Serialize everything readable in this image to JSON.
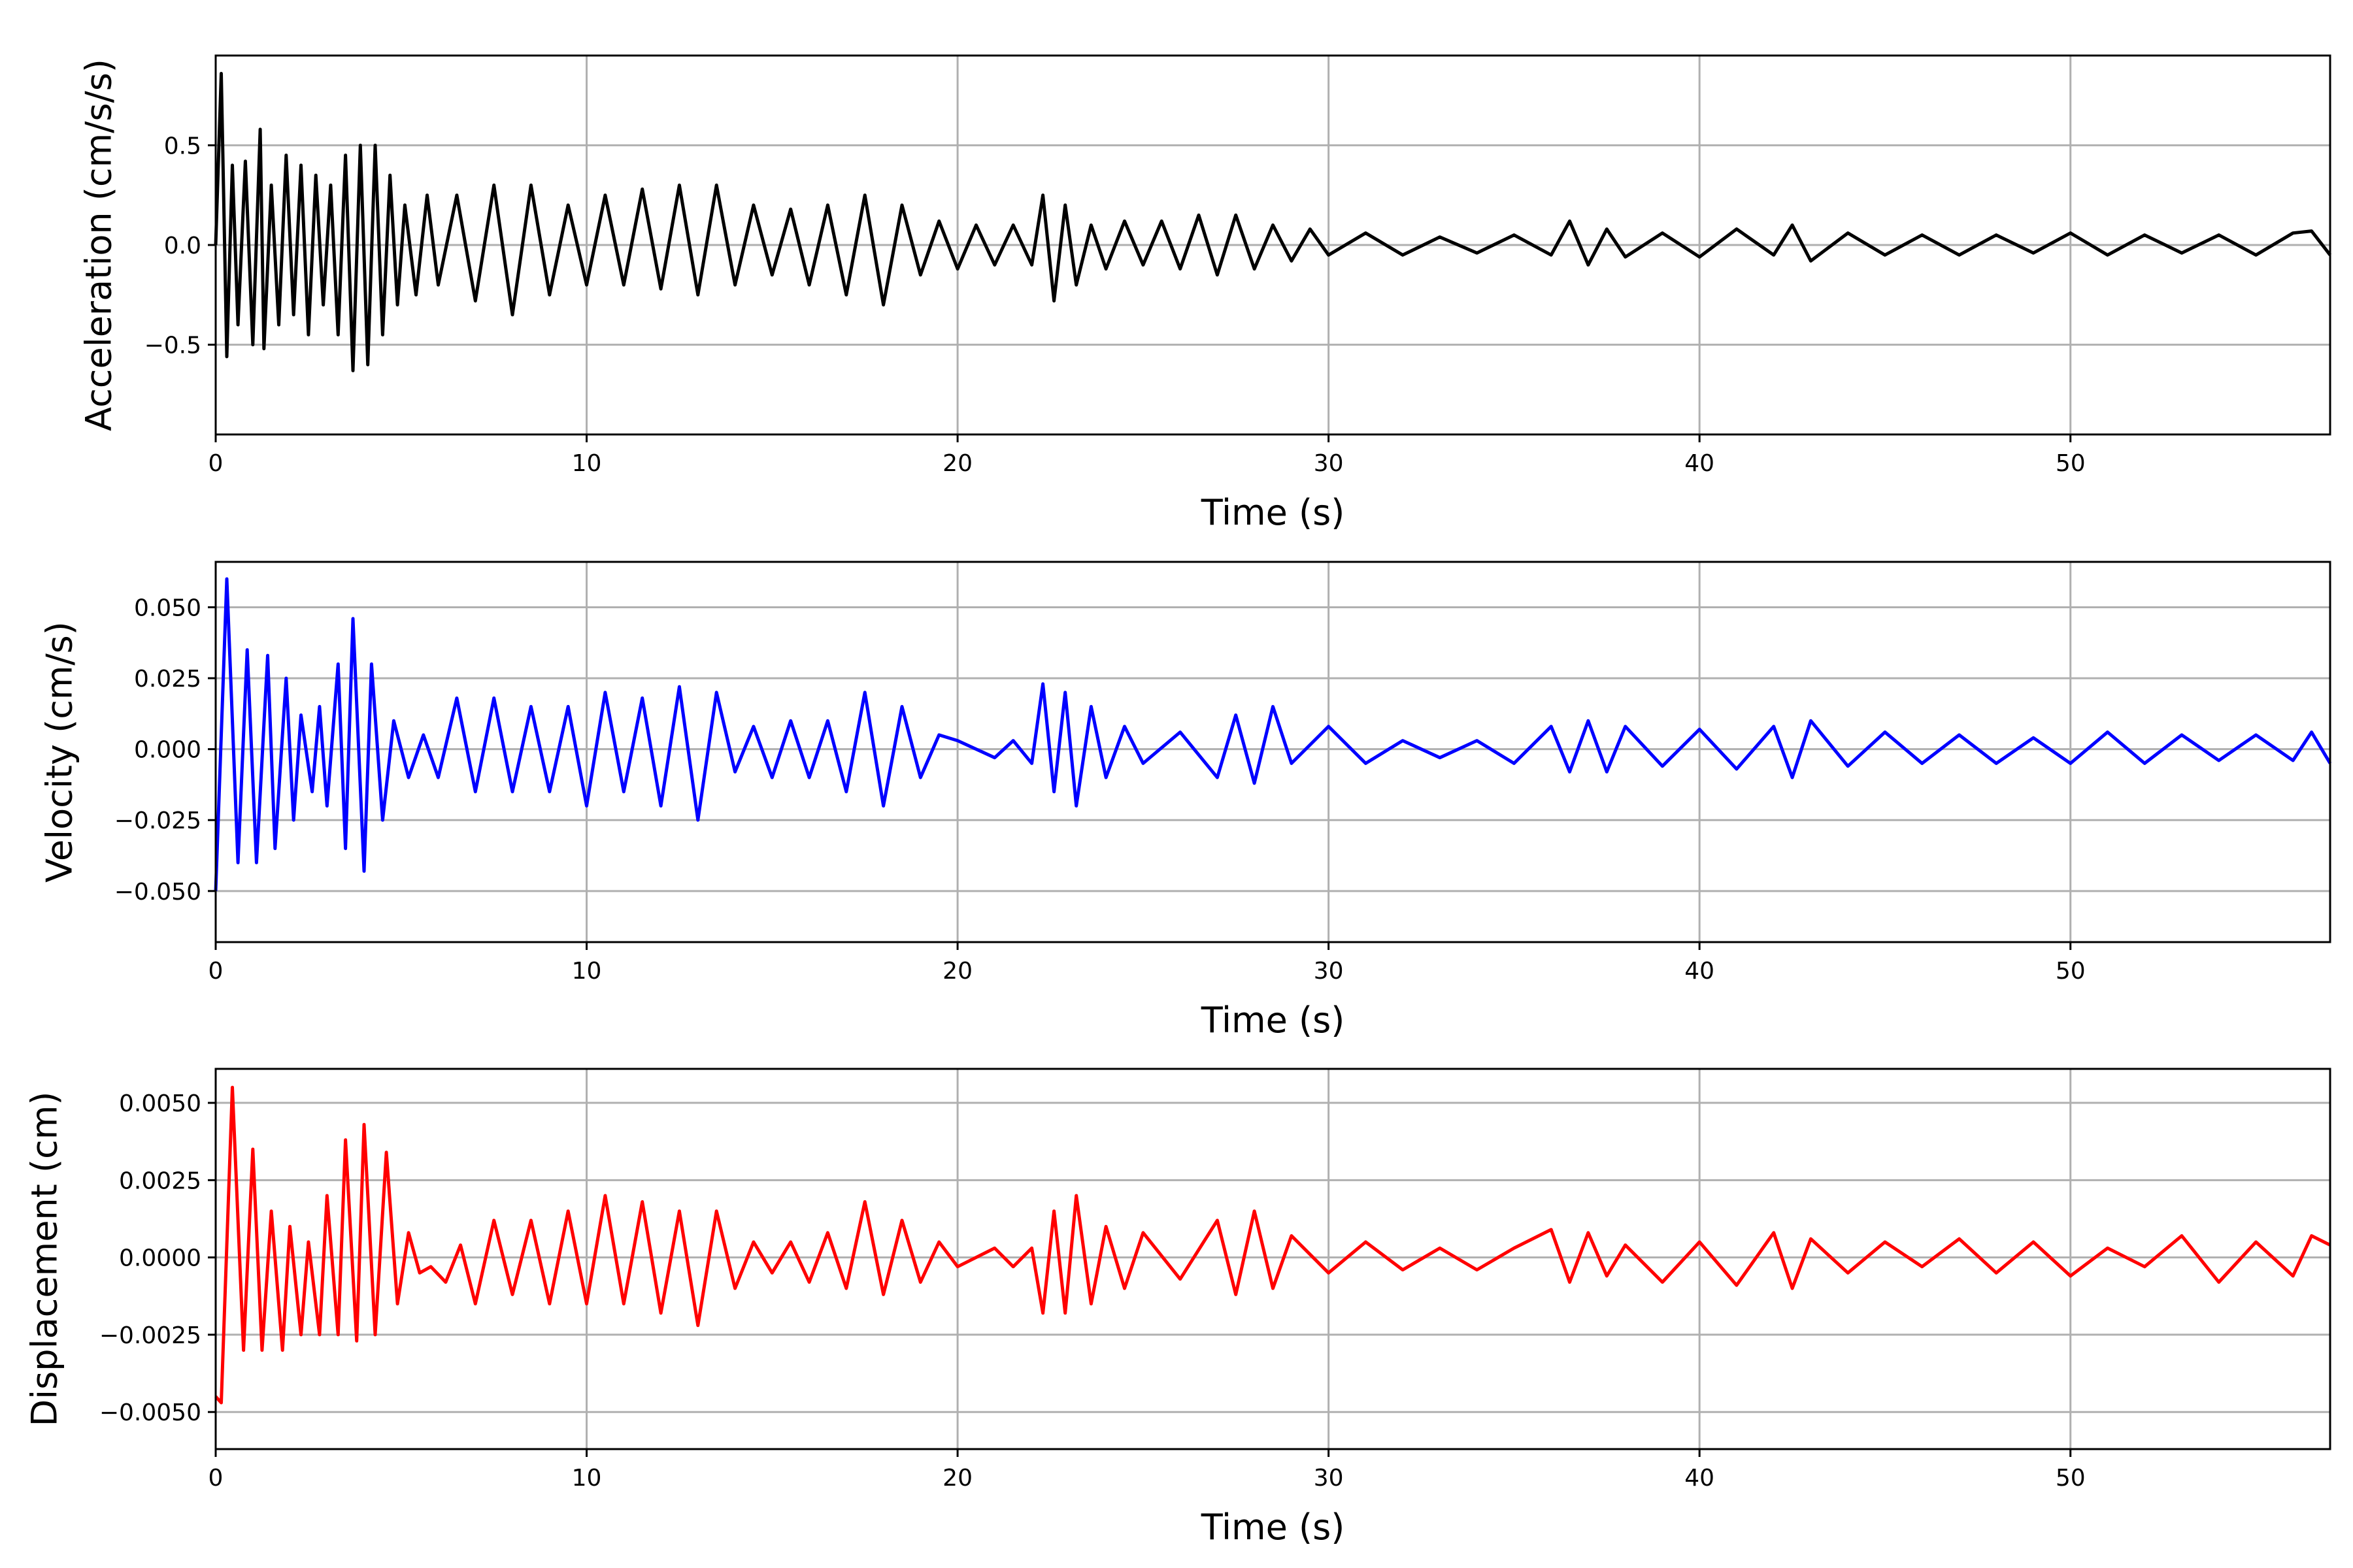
{
  "chart_data": [
    {
      "type": "line",
      "xlabel": "Time (s)",
      "ylabel": "Acceleration (cm/s/s)",
      "xlim": [
        0,
        57
      ],
      "ylim": [
        -0.95,
        0.95
      ],
      "xticks": [
        0,
        10,
        20,
        30,
        40,
        50
      ],
      "yticks": [
        -0.5,
        0.0,
        0.5
      ],
      "xtick_labels": [
        "0",
        "10",
        "20",
        "30",
        "40",
        "50"
      ],
      "ytick_labels": [
        "−0.5",
        "0.0",
        "0.5"
      ],
      "grid": true,
      "color": "#000000",
      "series": [
        {
          "x": [
            0.0,
            0.15,
            0.3,
            0.45,
            0.6,
            0.8,
            1.0,
            1.2,
            1.3,
            1.5,
            1.7,
            1.9,
            2.1,
            2.3,
            2.5,
            2.7,
            2.9,
            3.1,
            3.3,
            3.5,
            3.7,
            3.9,
            4.1,
            4.3,
            4.5,
            4.7,
            4.9,
            5.1,
            5.4,
            5.7,
            6.0,
            6.5,
            7.0,
            7.5,
            8.0,
            8.5,
            9.0,
            9.5,
            10.0,
            10.5,
            11.0,
            11.5,
            12.0,
            12.5,
            13.0,
            13.5,
            14.0,
            14.5,
            15.0,
            15.5,
            16.0,
            16.5,
            17.0,
            17.5,
            18.0,
            18.5,
            19.0,
            19.5,
            20.0,
            20.5,
            21.0,
            21.5,
            22.0,
            22.3,
            22.6,
            22.9,
            23.2,
            23.6,
            24.0,
            24.5,
            25.0,
            25.5,
            26.0,
            26.5,
            27.0,
            27.5,
            28.0,
            28.5,
            29.0,
            29.5,
            30.0,
            31.0,
            32.0,
            33.0,
            34.0,
            35.0,
            36.0,
            36.5,
            37.0,
            37.5,
            38.0,
            39.0,
            40.0,
            41.0,
            42.0,
            42.5,
            43.0,
            44.0,
            45.0,
            46.0,
            47.0,
            48.0,
            49.0,
            50.0,
            51.0,
            52.0,
            53.0,
            54.0,
            55.0,
            56.0,
            56.5,
            57.0
          ],
          "y": [
            0.0,
            0.86,
            -0.56,
            0.4,
            -0.4,
            0.42,
            -0.5,
            0.58,
            -0.52,
            0.3,
            -0.4,
            0.45,
            -0.35,
            0.4,
            -0.45,
            0.35,
            -0.3,
            0.3,
            -0.45,
            0.45,
            -0.63,
            0.5,
            -0.6,
            0.5,
            -0.45,
            0.35,
            -0.3,
            0.2,
            -0.25,
            0.25,
            -0.2,
            0.25,
            -0.28,
            0.3,
            -0.35,
            0.3,
            -0.25,
            0.2,
            -0.2,
            0.25,
            -0.2,
            0.28,
            -0.22,
            0.3,
            -0.25,
            0.3,
            -0.2,
            0.2,
            -0.15,
            0.18,
            -0.2,
            0.2,
            -0.25,
            0.25,
            -0.3,
            0.2,
            -0.15,
            0.12,
            -0.12,
            0.1,
            -0.1,
            0.1,
            -0.1,
            0.25,
            -0.28,
            0.2,
            -0.2,
            0.1,
            -0.12,
            0.12,
            -0.1,
            0.12,
            -0.12,
            0.15,
            -0.15,
            0.15,
            -0.12,
            0.1,
            -0.08,
            0.08,
            -0.05,
            0.06,
            -0.05,
            0.04,
            -0.04,
            0.05,
            -0.05,
            0.12,
            -0.1,
            0.08,
            -0.06,
            0.06,
            -0.06,
            0.08,
            -0.05,
            0.1,
            -0.08,
            0.06,
            -0.05,
            0.05,
            -0.05,
            0.05,
            -0.04,
            0.06,
            -0.05,
            0.05,
            -0.04,
            0.05,
            -0.05,
            0.06,
            0.07,
            -0.05
          ]
        }
      ]
    },
    {
      "type": "line",
      "xlabel": "Time (s)",
      "ylabel": "Velocity (cm/s)",
      "xlim": [
        0,
        57
      ],
      "ylim": [
        -0.068,
        0.066
      ],
      "xticks": [
        0,
        10,
        20,
        30,
        40,
        50
      ],
      "yticks": [
        -0.05,
        -0.025,
        0.0,
        0.025,
        0.05
      ],
      "xtick_labels": [
        "0",
        "10",
        "20",
        "30",
        "40",
        "50"
      ],
      "ytick_labels": [
        "−0.050",
        "−0.025",
        "0.000",
        "0.025",
        "0.050"
      ],
      "grid": true,
      "color": "#0000ff",
      "series": [
        {
          "x": [
            0.0,
            0.3,
            0.6,
            0.85,
            1.1,
            1.4,
            1.6,
            1.9,
            2.1,
            2.3,
            2.6,
            2.8,
            3.0,
            3.3,
            3.5,
            3.7,
            4.0,
            4.2,
            4.5,
            4.8,
            5.2,
            5.6,
            6.0,
            6.5,
            7.0,
            7.5,
            8.0,
            8.5,
            9.0,
            9.5,
            10.0,
            10.5,
            11.0,
            11.5,
            12.0,
            12.5,
            13.0,
            13.5,
            14.0,
            14.5,
            15.0,
            15.5,
            16.0,
            16.5,
            17.0,
            17.5,
            18.0,
            18.5,
            19.0,
            19.5,
            20.0,
            21.0,
            21.5,
            22.0,
            22.3,
            22.6,
            22.9,
            23.2,
            23.6,
            24.0,
            24.5,
            25.0,
            26.0,
            27.0,
            27.5,
            28.0,
            28.5,
            29.0,
            30.0,
            31.0,
            32.0,
            33.0,
            34.0,
            35.0,
            36.0,
            36.5,
            37.0,
            37.5,
            38.0,
            39.0,
            40.0,
            41.0,
            42.0,
            42.5,
            43.0,
            44.0,
            45.0,
            46.0,
            47.0,
            48.0,
            49.0,
            50.0,
            51.0,
            52.0,
            53.0,
            54.0,
            55.0,
            56.0,
            56.5,
            57.0
          ],
          "y": [
            -0.05,
            0.06,
            -0.04,
            0.035,
            -0.04,
            0.033,
            -0.035,
            0.025,
            -0.025,
            0.012,
            -0.015,
            0.015,
            -0.02,
            0.03,
            -0.035,
            0.046,
            -0.043,
            0.03,
            -0.025,
            0.01,
            -0.01,
            0.005,
            -0.01,
            0.018,
            -0.015,
            0.018,
            -0.015,
            0.015,
            -0.015,
            0.015,
            -0.02,
            0.02,
            -0.015,
            0.018,
            -0.02,
            0.022,
            -0.025,
            0.02,
            -0.008,
            0.008,
            -0.01,
            0.01,
            -0.01,
            0.01,
            -0.015,
            0.02,
            -0.02,
            0.015,
            -0.01,
            0.005,
            0.003,
            -0.003,
            0.003,
            -0.005,
            0.023,
            -0.015,
            0.02,
            -0.02,
            0.015,
            -0.01,
            0.008,
            -0.005,
            0.006,
            -0.01,
            0.012,
            -0.012,
            0.015,
            -0.005,
            0.008,
            -0.005,
            0.003,
            -0.003,
            0.003,
            -0.005,
            0.008,
            -0.008,
            0.01,
            -0.008,
            0.008,
            -0.006,
            0.007,
            -0.007,
            0.008,
            -0.01,
            0.01,
            -0.006,
            0.006,
            -0.005,
            0.005,
            -0.005,
            0.004,
            -0.005,
            0.006,
            -0.005,
            0.005,
            -0.004,
            0.005,
            -0.004,
            0.006,
            -0.005
          ]
        }
      ]
    },
    {
      "type": "line",
      "xlabel": "Time (s)",
      "ylabel": "Displacement (cm)",
      "xlim": [
        0,
        57
      ],
      "ylim": [
        -0.0062,
        0.0061
      ],
      "xticks": [
        0,
        10,
        20,
        30,
        40,
        50
      ],
      "yticks": [
        -0.005,
        -0.0025,
        0.0,
        0.0025,
        0.005
      ],
      "xtick_labels": [
        "0",
        "10",
        "20",
        "30",
        "40",
        "50"
      ],
      "ytick_labels": [
        "−0.0050",
        "−0.0025",
        "0.0000",
        "0.0025",
        "0.0050"
      ],
      "grid": true,
      "color": "#ff0000",
      "series": [
        {
          "x": [
            0.0,
            0.15,
            0.45,
            0.75,
            1.0,
            1.25,
            1.5,
            1.8,
            2.0,
            2.3,
            2.5,
            2.8,
            3.0,
            3.3,
            3.5,
            3.8,
            4.0,
            4.3,
            4.6,
            4.9,
            5.2,
            5.5,
            5.8,
            6.2,
            6.6,
            7.0,
            7.5,
            8.0,
            8.5,
            9.0,
            9.5,
            10.0,
            10.5,
            11.0,
            11.5,
            12.0,
            12.5,
            13.0,
            13.5,
            14.0,
            14.5,
            15.0,
            15.5,
            16.0,
            16.5,
            17.0,
            17.5,
            18.0,
            18.5,
            19.0,
            19.5,
            20.0,
            21.0,
            21.5,
            22.0,
            22.3,
            22.6,
            22.9,
            23.2,
            23.6,
            24.0,
            24.5,
            25.0,
            26.0,
            27.0,
            27.5,
            28.0,
            28.5,
            29.0,
            30.0,
            31.0,
            32.0,
            33.0,
            34.0,
            35.0,
            36.0,
            36.5,
            37.0,
            37.5,
            38.0,
            39.0,
            40.0,
            41.0,
            42.0,
            42.5,
            43.0,
            44.0,
            45.0,
            46.0,
            47.0,
            48.0,
            49.0,
            50.0,
            51.0,
            52.0,
            53.0,
            54.0,
            55.0,
            56.0,
            56.5,
            57.0
          ],
          "y": [
            -0.0045,
            -0.0047,
            0.0055,
            -0.003,
            0.0035,
            -0.003,
            0.0015,
            -0.003,
            0.001,
            -0.0025,
            0.0005,
            -0.0025,
            0.002,
            -0.0025,
            0.0038,
            -0.0027,
            0.0043,
            -0.0025,
            0.0034,
            -0.0015,
            0.0008,
            -0.0005,
            -0.0003,
            -0.0008,
            0.0004,
            -0.0015,
            0.0012,
            -0.0012,
            0.0012,
            -0.0015,
            0.0015,
            -0.0015,
            0.002,
            -0.0015,
            0.0018,
            -0.0018,
            0.0015,
            -0.0022,
            0.0015,
            -0.001,
            0.0005,
            -0.0005,
            0.0005,
            -0.0008,
            0.0008,
            -0.001,
            0.0018,
            -0.0012,
            0.0012,
            -0.0008,
            0.0005,
            -0.0003,
            0.0003,
            -0.0003,
            0.0003,
            -0.0018,
            0.0015,
            -0.0018,
            0.002,
            -0.0015,
            0.001,
            -0.001,
            0.0008,
            -0.0007,
            0.0012,
            -0.0012,
            0.0015,
            -0.001,
            0.0007,
            -0.0005,
            0.0005,
            -0.0004,
            0.0003,
            -0.0004,
            0.0003,
            0.0009,
            -0.0008,
            0.0008,
            -0.0006,
            0.0004,
            -0.0008,
            0.0005,
            -0.0009,
            0.0008,
            -0.001,
            0.0006,
            -0.0005,
            0.0005,
            -0.0003,
            0.0006,
            -0.0005,
            0.0005,
            -0.0006,
            0.0003,
            -0.0003,
            0.0007,
            -0.0008,
            0.0005,
            -0.0006,
            0.0007,
            0.0004
          ]
        }
      ]
    }
  ]
}
